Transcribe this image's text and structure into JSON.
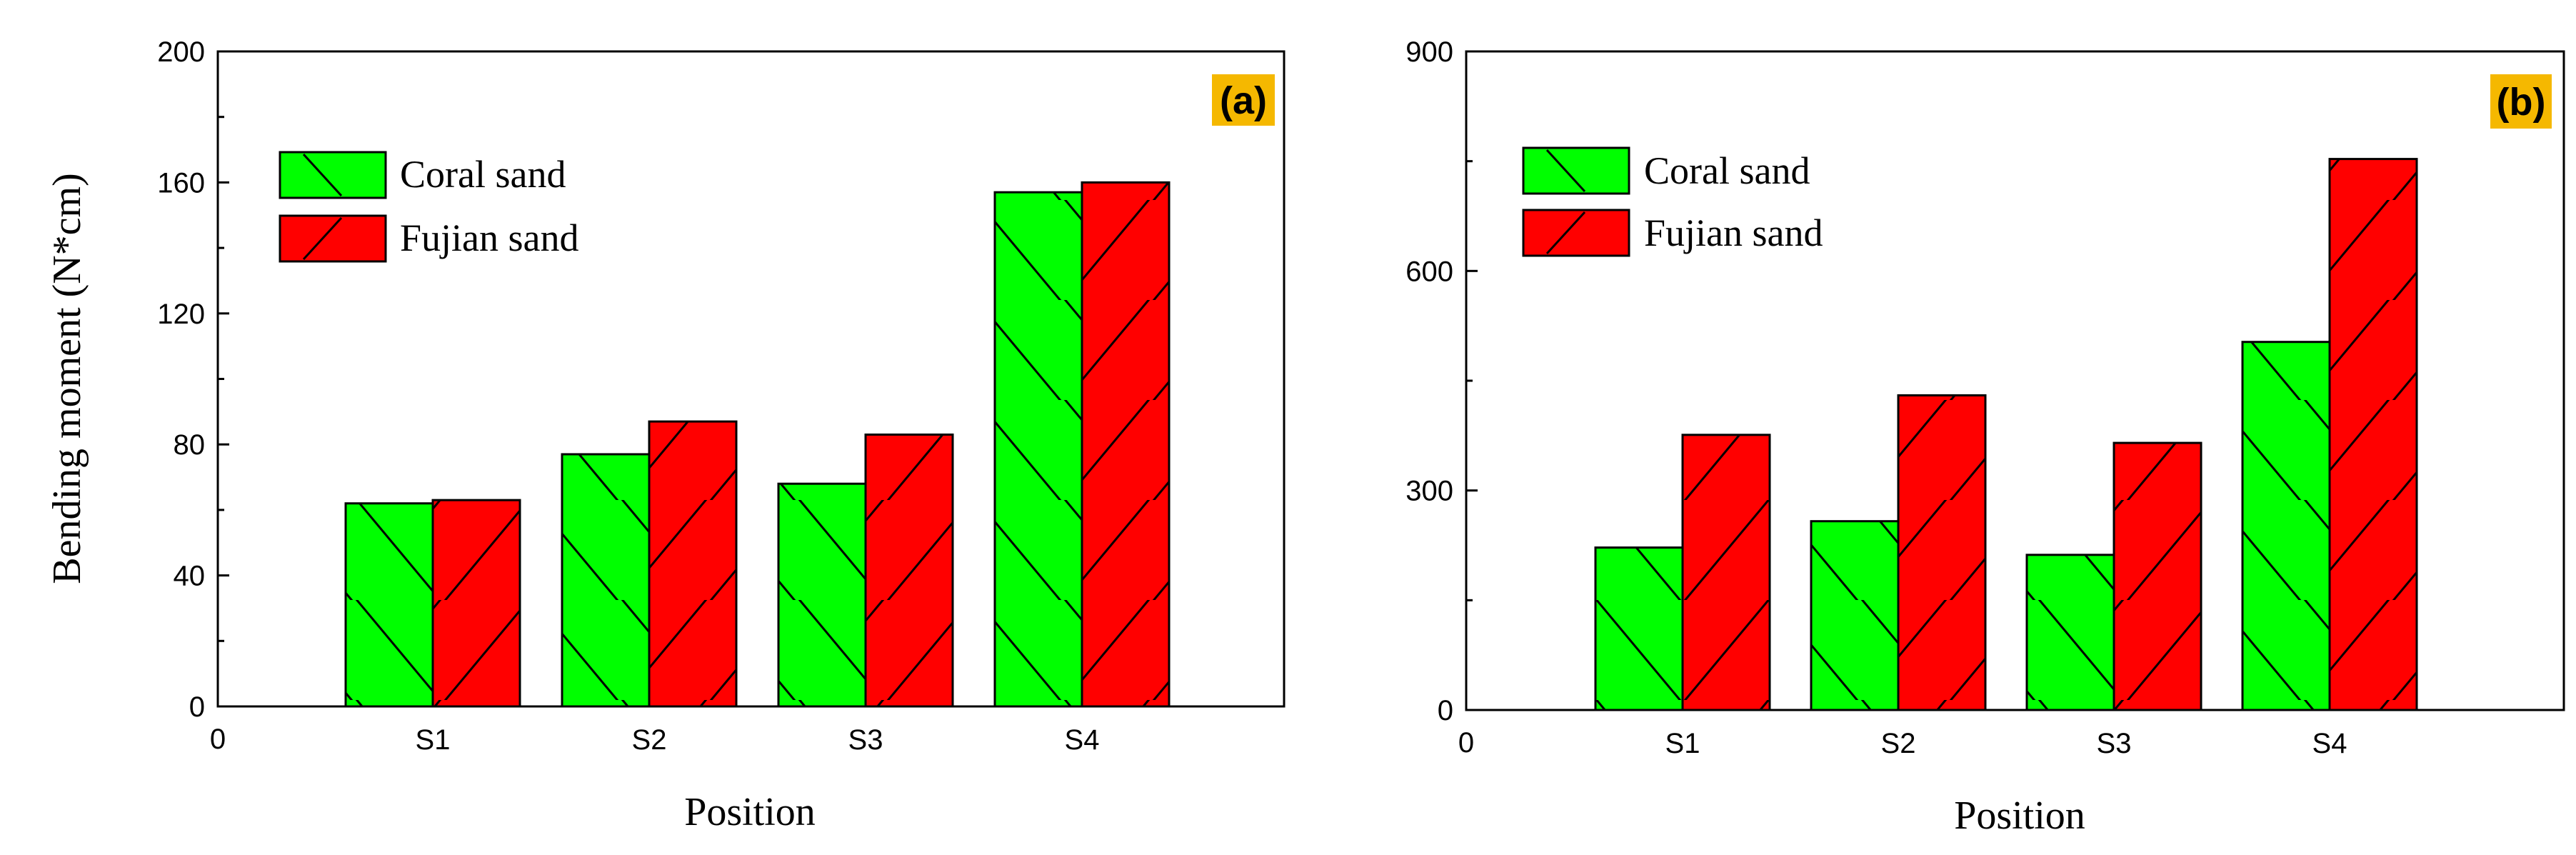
{
  "chart_data": [
    {
      "type": "bar",
      "panel_label": "(a)",
      "xlabel": "Position",
      "ylabel": "Bending moment (N*cm)",
      "x_origin_label": "0",
      "categories": [
        "S1",
        "S2",
        "S3",
        "S4"
      ],
      "series": [
        {
          "name": "Coral sand",
          "values": [
            62,
            77,
            68,
            157
          ]
        },
        {
          "name": "Fujian sand",
          "values": [
            63,
            87,
            83,
            160
          ]
        }
      ],
      "ylim": [
        0,
        200
      ],
      "yticks": [
        0,
        40,
        80,
        120,
        160,
        200
      ],
      "legend": "top-left",
      "grid": false
    },
    {
      "type": "bar",
      "panel_label": "(b)",
      "xlabel": "Position",
      "ylabel": "",
      "x_origin_label": "0",
      "categories": [
        "S1",
        "S2",
        "S3",
        "S4"
      ],
      "series": [
        {
          "name": "Coral sand",
          "values": [
            222,
            258,
            212,
            503
          ]
        },
        {
          "name": "Fujian sand",
          "values": [
            376,
            430,
            365,
            753
          ]
        }
      ],
      "ylim": [
        0,
        900
      ],
      "yticks": [
        0,
        300,
        600,
        900
      ],
      "legend": "top-left",
      "grid": false
    }
  ],
  "colors": {
    "coral": "#00ff00",
    "fujian": "#ff0000",
    "panel_tag_bg": "#f5b800"
  }
}
